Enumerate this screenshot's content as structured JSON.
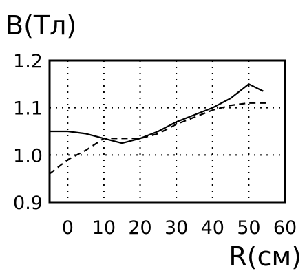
{
  "chart_data": {
    "type": "line",
    "title": "",
    "ylabel": "B(Тл)",
    "xlabel": "R(см)",
    "xlim": [
      -5,
      60
    ],
    "ylim": [
      0.9,
      1.2
    ],
    "x_ticks": [
      0,
      10,
      20,
      30,
      40,
      50,
      60
    ],
    "x_tick_labels": [
      "0",
      "10",
      "20",
      "30",
      "40",
      "50",
      "60"
    ],
    "y_ticks": [
      0.9,
      1.0,
      1.1,
      1.2
    ],
    "y_tick_labels": [
      "0.9",
      "1.0",
      "1.1",
      "1.2"
    ],
    "grid": true,
    "series": [
      {
        "style": "solid",
        "x": [
          -5,
          0,
          5,
          10,
          15,
          20,
          25,
          30,
          35,
          40,
          45,
          50,
          54
        ],
        "y": [
          1.05,
          1.05,
          1.045,
          1.035,
          1.025,
          1.035,
          1.05,
          1.07,
          1.085,
          1.1,
          1.12,
          1.15,
          1.135
        ]
      },
      {
        "style": "dashed",
        "x": [
          -5,
          0,
          5,
          10,
          15,
          20,
          25,
          30,
          35,
          40,
          45,
          50,
          55
        ],
        "y": [
          0.96,
          0.99,
          1.01,
          1.035,
          1.035,
          1.035,
          1.045,
          1.065,
          1.08,
          1.095,
          1.105,
          1.11,
          1.11
        ]
      }
    ]
  }
}
